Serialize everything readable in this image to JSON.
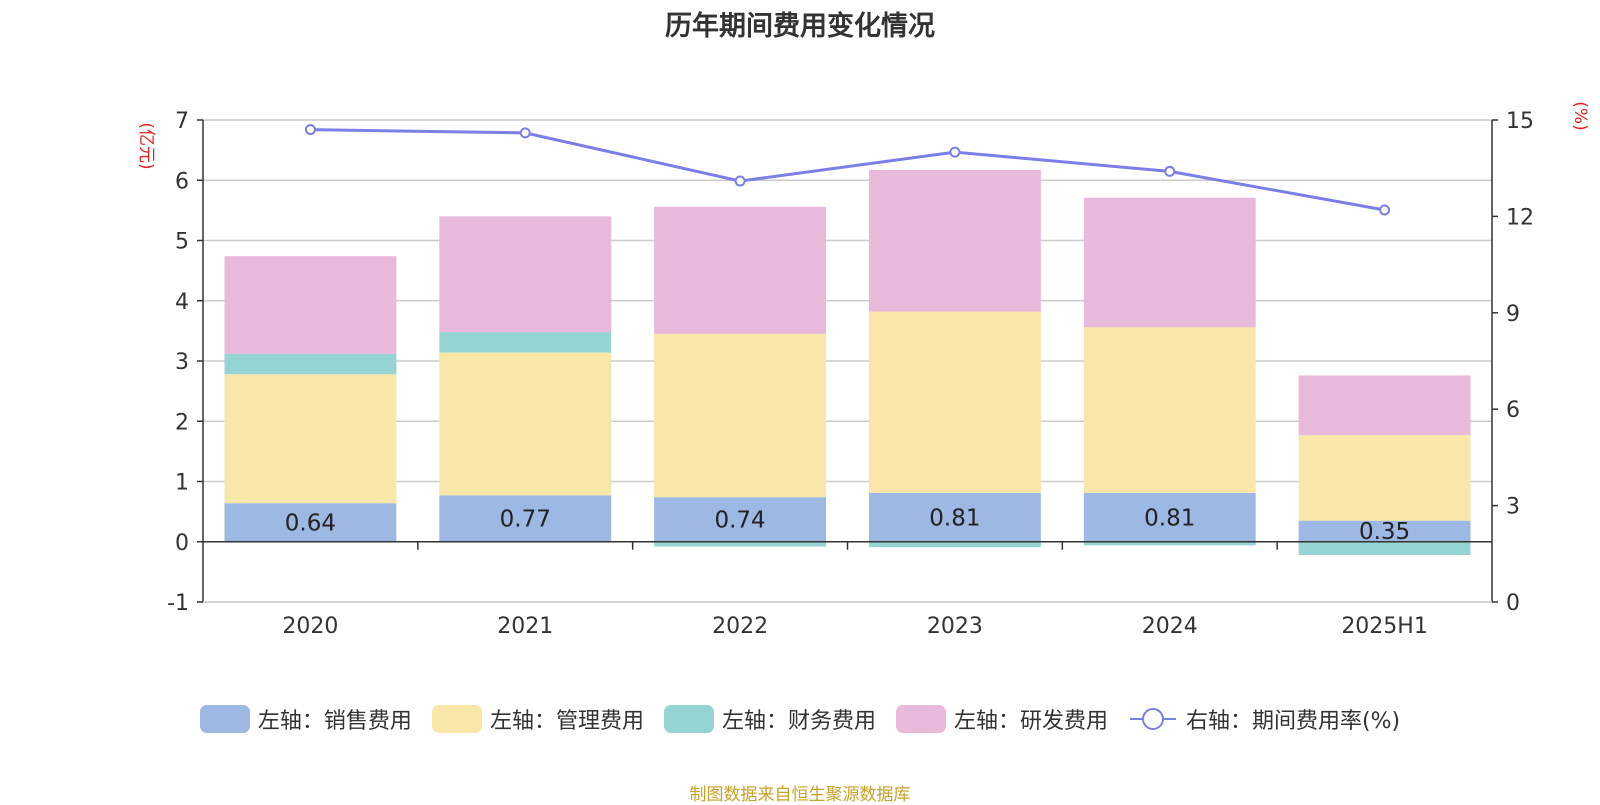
{
  "chart_data": {
    "type": "bar",
    "title": "历年期间费用变化情况",
    "categories": [
      "2020",
      "2021",
      "2022",
      "2023",
      "2024",
      "2025H1"
    ],
    "left_axis": {
      "unit_label": "(亿元)",
      "ylim": [
        -1,
        7
      ],
      "ticks": [
        "-1",
        "0",
        "1",
        "2",
        "3",
        "4",
        "5",
        "6",
        "7"
      ]
    },
    "right_axis": {
      "unit_label": "(%)",
      "ylim": [
        0,
        15
      ],
      "ticks": [
        "0",
        "3",
        "6",
        "9",
        "12",
        "15"
      ]
    },
    "stacked": true,
    "grid": true,
    "legend_position": "bottom",
    "series": [
      {
        "name": "左轴：销售费用",
        "type": "bar",
        "axis": "left",
        "color": "#9db8e2",
        "values": [
          0.64,
          0.77,
          0.74,
          0.81,
          0.81,
          0.35
        ],
        "data_labels": [
          "0.64",
          "0.77",
          "0.74",
          "0.81",
          "0.81",
          "0.35"
        ]
      },
      {
        "name": "左轴：管理费用",
        "type": "bar",
        "axis": "left",
        "color": "#f8e7a8",
        "values": [
          2.14,
          2.37,
          2.71,
          3.01,
          2.75,
          1.42
        ]
      },
      {
        "name": "左轴：财务费用",
        "type": "bar",
        "axis": "left",
        "color": "#96d4d4",
        "values": [
          0.34,
          0.34,
          -0.08,
          -0.09,
          -0.06,
          -0.22
        ]
      },
      {
        "name": "左轴：研发费用",
        "type": "bar",
        "axis": "left",
        "color": "#e8b9da",
        "values": [
          1.62,
          1.92,
          2.11,
          2.35,
          2.15,
          0.99
        ]
      },
      {
        "name": "右轴：期间费用率(%)",
        "type": "line",
        "axis": "right",
        "color": "#7a7fe6",
        "values": [
          14.7,
          14.6,
          13.1,
          14.0,
          13.4,
          12.2
        ]
      }
    ]
  },
  "source_note": "制图数据来自恒生聚源数据库"
}
